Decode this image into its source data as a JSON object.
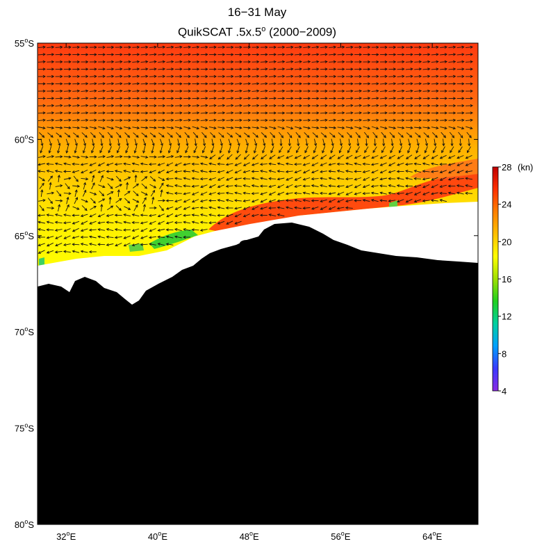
{
  "title": {
    "line1": "16−31 May",
    "line2_prefix": "QuikSCAT .5x.5",
    "line2_sup": "o",
    "line2_suffix": " (2000−2009)"
  },
  "map": {
    "region": "Southern Ocean, East Antarctic coast",
    "lat_range": [
      -80,
      -55
    ],
    "lon_range": [
      29.5,
      68.0
    ],
    "land_color": "#000000",
    "sea_ice_color": "#ffffff",
    "lat_ticks": [
      {
        "value": -55,
        "label": "55",
        "suffix": "S"
      },
      {
        "value": -60,
        "label": "60",
        "suffix": "S"
      },
      {
        "value": -65,
        "label": "65",
        "suffix": "S"
      },
      {
        "value": -70,
        "label": "70",
        "suffix": "S"
      },
      {
        "value": -75,
        "label": "75",
        "suffix": "S"
      },
      {
        "value": -80,
        "label": "80",
        "suffix": "S"
      }
    ],
    "lon_ticks": [
      {
        "value": 32,
        "label": "32",
        "suffix": "E"
      },
      {
        "value": 40,
        "label": "40",
        "suffix": "E"
      },
      {
        "value": 48,
        "label": "48",
        "suffix": "E"
      },
      {
        "value": 56,
        "label": "56",
        "suffix": "E"
      },
      {
        "value": 64,
        "label": "64",
        "suffix": "E"
      }
    ],
    "degree_symbol": "o"
  },
  "colorbar": {
    "unit_label": "(kn)",
    "min": 4,
    "max": 28,
    "ticks": [
      "4",
      "8",
      "12",
      "16",
      "20",
      "24",
      "28"
    ],
    "colors": [
      "#8a2be2",
      "#3a3aff",
      "#00a0ff",
      "#00d0a0",
      "#20d020",
      "#a0e000",
      "#ffff00",
      "#ffc000",
      "#ff8000",
      "#ff3000",
      "#c00000"
    ]
  },
  "chart_data": {
    "type": "heatmap",
    "variable": "wind speed with wind-direction vectors",
    "title": "16−31 May",
    "subtitle": "QuikSCAT .5x.5o (2000−2009)",
    "units": "kn",
    "color_range": [
      4,
      28
    ],
    "approximate_zones": [
      {
        "lat_range": [
          -58,
          -55
        ],
        "speed_kn": 24
      },
      {
        "lat_range": [
          -61,
          -58
        ],
        "speed_kn": 21
      },
      {
        "lat_range": [
          -65,
          -61
        ],
        "speed_kn": 19
      },
      {
        "lat_range": [
          -66,
          -64.5
        ],
        "lon_range": [
          45,
          52
        ],
        "speed_kn": 25
      },
      {
        "lat_range": [
          -67.5,
          -65.5
        ],
        "lon_range": [
          40,
          44
        ],
        "speed_kn": 15
      }
    ],
    "prevailing_direction": "westward (easterlies) south of 62S, eastward north of 62S"
  }
}
